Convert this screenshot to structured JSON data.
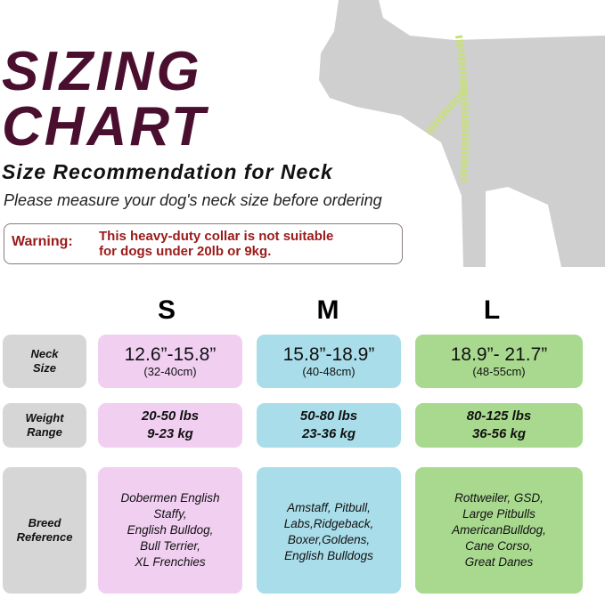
{
  "title": {
    "line1": "SIZING",
    "line2": "CHART"
  },
  "subtitle": "Size Recommendation for Neck",
  "note": "Please measure your dog's neck size before ordering",
  "warning": {
    "label": "Warning:",
    "line1": "This heavy-duty collar is not suitable",
    "line2": "for dogs under 20lb or 9kg."
  },
  "colors": {
    "title": "#4a0f2e",
    "warning": "#9b1a1a",
    "S": "#f1cff1",
    "M": "#a9dde9",
    "L": "#a9d98f",
    "label_bg": "#d6d6d6"
  },
  "row_labels": {
    "neck": [
      "Neck",
      "Size"
    ],
    "weight": [
      "Weight",
      "Range"
    ],
    "breed": [
      "Breed",
      "Reference"
    ]
  },
  "sizes": [
    {
      "name": "S",
      "neck_in": "12.6”-15.8”",
      "neck_cm": "(32-40cm)",
      "lbs": "20-50 lbs",
      "kg": "9-23 kg",
      "breeds": [
        "Dobermen English",
        "Staffy,",
        "English Bulldog,",
        "Bull Terrier,",
        "XL Frenchies"
      ]
    },
    {
      "name": "M",
      "neck_in": "15.8”-18.9”",
      "neck_cm": "(40-48cm)",
      "lbs": "50-80 lbs",
      "kg": "23-36 kg",
      "breeds": [
        "Amstaff, Pitbull,",
        "Labs,Ridgeback,",
        "Boxer,Goldens,",
        "English Bulldogs"
      ]
    },
    {
      "name": "L",
      "neck_in": "18.9”- 21.7”",
      "neck_cm": "(48-55cm)",
      "lbs": "80-125 lbs",
      "kg": "36-56 kg",
      "breeds": [
        "Rottweiler, GSD,",
        "Large Pitbulls",
        "AmericanBulldog,",
        "Cane Corso,",
        "Great Danes"
      ]
    }
  ]
}
